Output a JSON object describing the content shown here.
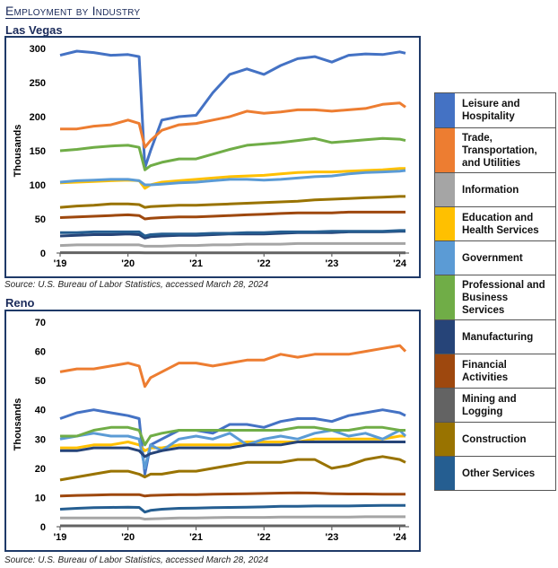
{
  "page": {
    "title": "Employment by Industry"
  },
  "sources": {
    "las_vegas": "Source: U.S. Bureau of Labor Statistics, accessed March 28, 2024",
    "reno": "Source: U.S. Bureau of Labor Statistics, accessed March 28, 2024"
  },
  "legend": [
    {
      "label": "Leisure and Hospitality",
      "color": "#4472c4"
    },
    {
      "label": "Trade, Transportation, and Utilities",
      "color": "#ed7d31"
    },
    {
      "label": "Information",
      "color": "#a5a5a5"
    },
    {
      "label": "Education and Health Services",
      "color": "#ffc000"
    },
    {
      "label": "Government",
      "color": "#5b9bd5"
    },
    {
      "label": "Professional and Business Services",
      "color": "#70ad47"
    },
    {
      "label": "Manufacturing",
      "color": "#264478"
    },
    {
      "label": "Financial Activities",
      "color": "#9e480e"
    },
    {
      "label": "Mining and Logging",
      "color": "#636363"
    },
    {
      "label": "Construction",
      "color": "#997300"
    },
    {
      "label": "Other Services",
      "color": "#255e91"
    }
  ],
  "chart_data": [
    {
      "type": "line",
      "title": "Las Vegas",
      "ylabel": "Thousands",
      "ylim": [
        0,
        300
      ],
      "yticks": [
        "0",
        "50",
        "100",
        "150",
        "200",
        "250",
        "300"
      ],
      "xticks": [
        "'19",
        "'20",
        "'21",
        "'22",
        "'23",
        "'24"
      ],
      "x": [
        "2019-01",
        "2019-04",
        "2019-07",
        "2019-10",
        "2020-01",
        "2020-03",
        "2020-04",
        "2020-05",
        "2020-07",
        "2020-10",
        "2021-01",
        "2021-04",
        "2021-07",
        "2021-10",
        "2022-01",
        "2022-04",
        "2022-07",
        "2022-10",
        "2023-01",
        "2023-04",
        "2023-07",
        "2023-10",
        "2024-01",
        "2024-02"
      ],
      "series": [
        {
          "name": "Leisure and Hospitality",
          "values": [
            290,
            296,
            294,
            290,
            291,
            288,
            125,
            150,
            195,
            200,
            202,
            235,
            262,
            270,
            262,
            275,
            285,
            288,
            280,
            290,
            292,
            291,
            295,
            293
          ]
        },
        {
          "name": "Trade, Transportation, and Utilities",
          "values": [
            182,
            182,
            186,
            188,
            195,
            190,
            155,
            165,
            180,
            188,
            190,
            195,
            200,
            208,
            205,
            207,
            210,
            210,
            208,
            210,
            212,
            218,
            220,
            214
          ]
        },
        {
          "name": "Information",
          "values": [
            11,
            12,
            12,
            12,
            12,
            12,
            10,
            10,
            10,
            11,
            11,
            12,
            12,
            13,
            13,
            13,
            14,
            14,
            14,
            14,
            14,
            14,
            14,
            14
          ]
        },
        {
          "name": "Education and Health Services",
          "values": [
            103,
            104,
            105,
            106,
            107,
            106,
            95,
            100,
            104,
            106,
            108,
            110,
            112,
            113,
            114,
            116,
            118,
            119,
            119,
            120,
            121,
            122,
            124,
            124
          ]
        },
        {
          "name": "Government",
          "values": [
            104,
            106,
            107,
            108,
            108,
            106,
            100,
            100,
            101,
            103,
            104,
            106,
            108,
            108,
            107,
            108,
            110,
            112,
            113,
            116,
            118,
            119,
            120,
            121
          ]
        },
        {
          "name": "Professional and Business Services",
          "values": [
            150,
            152,
            155,
            157,
            158,
            155,
            122,
            128,
            133,
            138,
            138,
            145,
            152,
            158,
            160,
            162,
            165,
            168,
            162,
            164,
            166,
            168,
            167,
            165
          ]
        },
        {
          "name": "Manufacturing",
          "values": [
            25,
            26,
            27,
            27,
            28,
            27,
            22,
            24,
            25,
            26,
            26,
            27,
            28,
            28,
            28,
            29,
            30,
            30,
            30,
            31,
            31,
            31,
            32,
            32
          ]
        },
        {
          "name": "Financial Activities",
          "values": [
            52,
            53,
            54,
            55,
            56,
            55,
            50,
            51,
            52,
            53,
            53,
            54,
            55,
            56,
            57,
            58,
            59,
            59,
            59,
            60,
            60,
            60,
            60,
            60
          ]
        },
        {
          "name": "Mining and Logging",
          "values": [
            0.5,
            0.5,
            0.5,
            0.5,
            0.5,
            0.5,
            0.4,
            0.4,
            0.4,
            0.4,
            0.4,
            0.4,
            0.4,
            0.4,
            0.4,
            0.4,
            0.4,
            0.4,
            0.4,
            0.4,
            0.4,
            0.4,
            0.4,
            0.4
          ]
        },
        {
          "name": "Construction",
          "values": [
            67,
            69,
            70,
            72,
            72,
            71,
            67,
            68,
            69,
            70,
            70,
            71,
            72,
            73,
            74,
            75,
            76,
            78,
            79,
            80,
            81,
            82,
            83,
            83
          ]
        },
        {
          "name": "Other Services",
          "values": [
            30,
            30,
            31,
            31,
            31,
            31,
            25,
            27,
            28,
            28,
            28,
            29,
            29,
            30,
            30,
            31,
            31,
            31,
            32,
            32,
            32,
            32,
            33,
            33
          ]
        }
      ]
    },
    {
      "type": "line",
      "title": "Reno",
      "ylabel": "Thousands",
      "ylim": [
        0,
        70
      ],
      "yticks": [
        "0",
        "10",
        "20",
        "30",
        "40",
        "50",
        "60",
        "70"
      ],
      "xticks": [
        "'19",
        "'20",
        "'21",
        "'22",
        "'23",
        "'24"
      ],
      "x": [
        "2019-01",
        "2019-04",
        "2019-07",
        "2019-10",
        "2020-01",
        "2020-03",
        "2020-04",
        "2020-05",
        "2020-07",
        "2020-10",
        "2021-01",
        "2021-04",
        "2021-07",
        "2021-10",
        "2022-01",
        "2022-04",
        "2022-07",
        "2022-10",
        "2023-01",
        "2023-04",
        "2023-07",
        "2023-10",
        "2024-01",
        "2024-02"
      ],
      "series": [
        {
          "name": "Leisure and Hospitality",
          "values": [
            37,
            39,
            40,
            39,
            38,
            37,
            18,
            28,
            30,
            33,
            33,
            32,
            35,
            35,
            34,
            36,
            37,
            37,
            36,
            38,
            39,
            40,
            39,
            38
          ]
        },
        {
          "name": "Trade, Transportation, and Utilities",
          "values": [
            53,
            54,
            54,
            55,
            56,
            55,
            48,
            51,
            53,
            56,
            56,
            55,
            56,
            57,
            57,
            59,
            58,
            59,
            59,
            59,
            60,
            61,
            62,
            60
          ]
        },
        {
          "name": "Information",
          "values": [
            3,
            3,
            3,
            3,
            3,
            3,
            2.6,
            2.7,
            2.8,
            3,
            3,
            3.1,
            3.2,
            3.2,
            3.2,
            3.3,
            3.3,
            3.3,
            3.3,
            3.3,
            3.4,
            3.4,
            3.4,
            3.4
          ]
        },
        {
          "name": "Education and Health Services",
          "values": [
            27,
            27,
            28,
            28,
            29,
            28,
            26,
            27,
            27,
            28,
            28,
            28,
            28,
            29,
            29,
            29,
            29,
            30,
            30,
            30,
            30,
            30,
            31,
            31
          ]
        },
        {
          "name": "Government",
          "values": [
            30,
            31,
            32,
            31,
            31,
            30,
            20,
            28,
            26,
            30,
            31,
            30,
            32,
            28,
            30,
            31,
            30,
            32,
            33,
            31,
            32,
            30,
            33,
            31
          ]
        },
        {
          "name": "Professional and Business Services",
          "values": [
            31,
            31,
            33,
            34,
            34,
            33,
            28,
            31,
            32,
            33,
            33,
            33,
            33,
            33,
            33,
            33,
            34,
            34,
            33,
            33,
            34,
            34,
            33,
            33
          ]
        },
        {
          "name": "Manufacturing",
          "values": [
            26,
            26,
            27,
            27,
            27,
            26,
            24,
            25,
            26,
            27,
            27,
            27,
            27,
            28,
            28,
            28,
            29,
            29,
            29,
            29,
            29,
            29,
            29,
            29
          ]
        },
        {
          "name": "Financial Activities",
          "values": [
            10.5,
            10.7,
            10.8,
            11,
            11,
            11,
            10.5,
            10.7,
            10.8,
            11,
            11,
            11.1,
            11.2,
            11.3,
            11.4,
            11.5,
            11.6,
            11.5,
            11.3,
            11.2,
            11.2,
            11.1,
            11.1,
            11.1
          ]
        },
        {
          "name": "Mining and Logging",
          "values": [
            0.3,
            0.3,
            0.3,
            0.3,
            0.3,
            0.3,
            0.3,
            0.3,
            0.3,
            0.3,
            0.3,
            0.3,
            0.3,
            0.3,
            0.3,
            0.3,
            0.3,
            0.3,
            0.3,
            0.3,
            0.3,
            0.3,
            0.3,
            0.3
          ]
        },
        {
          "name": "Construction",
          "values": [
            16,
            17,
            18,
            19,
            19,
            18,
            17,
            18,
            18,
            19,
            19,
            20,
            21,
            22,
            22,
            22,
            23,
            23,
            20,
            21,
            23,
            24,
            23,
            22
          ]
        },
        {
          "name": "Other Services",
          "values": [
            6,
            6.3,
            6.5,
            6.6,
            6.7,
            6.6,
            5,
            5.6,
            6,
            6.3,
            6.4,
            6.5,
            6.6,
            6.7,
            6.8,
            7,
            7,
            7.1,
            7.1,
            7.1,
            7.2,
            7.3,
            7.3,
            7.3
          ]
        }
      ]
    }
  ]
}
